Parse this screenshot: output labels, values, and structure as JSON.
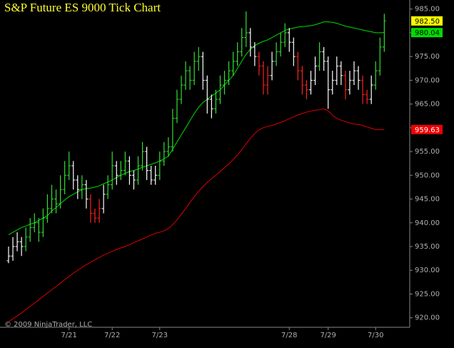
{
  "chart_data": {
    "type": "ohlc",
    "title": "S&P Future ES 9000 Tick Chart",
    "copyright": "© 2009 NinjaTrader, LLC",
    "categories": [
      null,
      null,
      null,
      null,
      null,
      null,
      null,
      null,
      null,
      null,
      null,
      null,
      null,
      null,
      "7/21",
      null,
      null,
      null,
      null,
      null,
      null,
      null,
      null,
      null,
      "7/22",
      null,
      null,
      null,
      null,
      null,
      null,
      null,
      null,
      null,
      null,
      "7/23",
      null,
      null,
      null,
      null,
      null,
      null,
      null,
      null,
      null,
      null,
      null,
      null,
      null,
      null,
      null,
      null,
      null,
      null,
      null,
      null,
      null,
      null,
      null,
      null,
      null,
      null,
      null,
      null,
      null,
      "7/28",
      null,
      null,
      null,
      null,
      null,
      null,
      null,
      null,
      "7/29",
      null,
      null,
      null,
      null,
      null,
      null,
      null,
      null,
      null,
      null,
      "7/30",
      null,
      null
    ],
    "open": [
      932,
      933,
      935,
      936,
      935,
      937,
      939,
      940,
      938,
      941,
      943,
      945,
      944,
      947,
      950,
      952,
      949,
      947,
      948,
      945,
      942,
      941,
      943,
      946,
      948,
      952,
      950,
      951,
      953,
      950,
      949,
      952,
      955,
      951,
      949,
      950,
      953,
      955,
      956,
      962,
      966,
      969,
      972,
      970,
      974,
      975,
      970,
      966,
      964,
      966,
      969,
      970,
      972,
      974,
      976,
      979,
      980,
      977,
      975,
      973,
      969,
      971,
      974,
      976,
      978,
      980,
      978,
      975,
      972,
      969,
      968,
      970,
      973,
      976,
      974,
      968,
      970,
      973,
      971,
      968,
      970,
      972,
      970,
      967,
      966,
      969,
      972,
      977
    ],
    "high": [
      935,
      937,
      938,
      937,
      939,
      941,
      942,
      941,
      943,
      946,
      948,
      947,
      950,
      953,
      955,
      953,
      950,
      950,
      949,
      946,
      943,
      945,
      948,
      950,
      955,
      953,
      953,
      955,
      954,
      951,
      954,
      957,
      956,
      952,
      952,
      955,
      957,
      958,
      964,
      968,
      971,
      974,
      973,
      976,
      977,
      976,
      971,
      967,
      968,
      971,
      972,
      974,
      976,
      978,
      981,
      984.5,
      981,
      978,
      976,
      974,
      973,
      976,
      978,
      980,
      982,
      981,
      979,
      976,
      973,
      970,
      972,
      975,
      978,
      977,
      975,
      972,
      975,
      974,
      972,
      972,
      974,
      973,
      971,
      968,
      971,
      974,
      979,
      984
    ],
    "low": [
      931.5,
      932,
      934,
      933,
      934,
      936,
      938,
      936,
      937,
      940,
      942,
      942,
      943,
      946,
      949,
      947,
      945,
      945,
      943,
      940,
      940,
      940,
      942,
      945,
      947,
      948,
      949,
      950,
      948,
      947,
      948,
      951,
      949,
      948,
      948,
      949,
      952,
      954,
      955,
      961,
      965,
      968,
      968,
      969,
      972,
      968,
      963,
      962,
      963,
      965,
      967,
      969,
      971,
      973,
      975,
      977,
      975,
      973,
      971,
      967,
      967,
      970,
      973,
      975,
      977,
      976,
      973,
      970,
      967,
      966,
      967,
      969,
      972,
      972,
      964,
      967,
      969,
      969,
      966,
      967,
      969,
      968,
      965,
      965,
      965,
      968,
      971,
      976
    ],
    "close": [
      933,
      935,
      936,
      935,
      937,
      939,
      940,
      938,
      941,
      943,
      945,
      944,
      947,
      950,
      952,
      949,
      947,
      948,
      945,
      942,
      941,
      943,
      946,
      948,
      952,
      950,
      951,
      953,
      950,
      949,
      952,
      955,
      951,
      949,
      950,
      953,
      955,
      956,
      962,
      966,
      969,
      972,
      970,
      974,
      975,
      970,
      966,
      964,
      966,
      969,
      970,
      972,
      974,
      976,
      979,
      980,
      977,
      975,
      973,
      969,
      971,
      974,
      976,
      978,
      980,
      978,
      975,
      972,
      969,
      968,
      970,
      973,
      976,
      974,
      968,
      970,
      973,
      971,
      968,
      970,
      972,
      970,
      967,
      966,
      969,
      972,
      977,
      982.5
    ],
    "bar_colors": [
      "#ffffff",
      "#ffffff",
      "#ffffff",
      "#ffffff",
      "#33dd33",
      "#33dd33",
      "#33dd33",
      "#33dd33",
      "#33dd33",
      "#33dd33",
      "#33dd33",
      "#33dd33",
      "#33dd33",
      "#33dd33",
      "#33dd33",
      "#ffffff",
      "#ffffff",
      "#33dd33",
      "#ffffff",
      "#ff2020",
      "#ff2020",
      "#ff2020",
      "#ffffff",
      "#33dd33",
      "#33dd33",
      "#ffffff",
      "#33dd33",
      "#33dd33",
      "#ffffff",
      "#ffffff",
      "#33dd33",
      "#33dd33",
      "#ffffff",
      "#ffffff",
      "#ffffff",
      "#33dd33",
      "#33dd33",
      "#33dd33",
      "#33dd33",
      "#33dd33",
      "#33dd33",
      "#33dd33",
      "#33dd33",
      "#33dd33",
      "#33dd33",
      "#ffffff",
      "#ffffff",
      "#ffffff",
      "#33dd33",
      "#33dd33",
      "#33dd33",
      "#33dd33",
      "#33dd33",
      "#33dd33",
      "#33dd33",
      "#33dd33",
      "#ffffff",
      "#ffffff",
      "#ff2020",
      "#ff2020",
      "#ff2020",
      "#ffffff",
      "#33dd33",
      "#33dd33",
      "#33dd33",
      "#ffffff",
      "#ffffff",
      "#ff2020",
      "#ff2020",
      "#ff2020",
      "#ffffff",
      "#ffffff",
      "#33dd33",
      "#ffffff",
      "#ffffff",
      "#ffffff",
      "#ffffff",
      "#ffffff",
      "#ff2020",
      "#ffffff",
      "#ffffff",
      "#ffffff",
      "#ff2020",
      "#ff2020",
      "#ffffff",
      "#33dd33",
      "#33dd33",
      "#33dd33"
    ],
    "lines": [
      {
        "color": "#00dd00",
        "values": [
          937.5,
          938,
          938.5,
          939,
          939.3,
          939.7,
          940,
          940.5,
          941,
          941.5,
          942.5,
          943.2,
          944,
          944.8,
          945.5,
          946,
          946.5,
          947,
          947.2,
          947.3,
          947.5,
          947.8,
          948.2,
          948.6,
          949,
          949.5,
          950,
          950.4,
          950.8,
          951,
          951.3,
          951.7,
          952,
          952.3,
          952.6,
          953,
          953.5,
          954,
          955.5,
          957,
          958.5,
          960,
          961.5,
          963,
          964.3,
          965.3,
          966,
          966.7,
          967.3,
          968,
          969,
          970,
          971,
          972.5,
          974,
          975.5,
          976.5,
          977.3,
          977.8,
          978.2,
          978.5,
          979,
          979.5,
          980,
          980.5,
          980.8,
          981,
          981.2,
          981.3,
          981.4,
          981.5,
          981.7,
          982,
          982.3,
          982.3,
          982.2,
          982,
          981.7,
          981.4,
          981.2,
          981,
          980.8,
          980.6,
          980.4,
          980.2,
          980,
          980,
          980.04
        ]
      },
      {
        "color": "#dd0000",
        "values": [
          919.2,
          919.8,
          920.4,
          921,
          921.7,
          922.4,
          923.1,
          923.8,
          924.5,
          925.2,
          925.9,
          926.6,
          927.3,
          928,
          928.7,
          929.4,
          930,
          930.6,
          931.2,
          931.7,
          932.2,
          932.7,
          933.2,
          933.6,
          934,
          934.4,
          934.7,
          935,
          935.4,
          935.8,
          936.2,
          936.6,
          937,
          937.4,
          937.8,
          938,
          938.3,
          938.8,
          939.6,
          940.6,
          941.8,
          943,
          944.3,
          945.5,
          946.6,
          947.6,
          948.5,
          949.3,
          950,
          950.8,
          951.6,
          952.4,
          953.3,
          954.3,
          955.4,
          956.6,
          957.8,
          958.8,
          959.6,
          960,
          960.3,
          960.5,
          960.8,
          961.1,
          961.5,
          961.9,
          962.3,
          962.7,
          963,
          963.3,
          963.5,
          963.7,
          963.8,
          964,
          963.6,
          962.6,
          962,
          961.6,
          961.3,
          961,
          960.8,
          960.7,
          960.5,
          960.2,
          959.9,
          959.6,
          959.6,
          959.63
        ]
      }
    ],
    "price_labels": [
      {
        "value": 982.5,
        "label": "982.50",
        "color": "#ffff00",
        "text_color": "#000000"
      },
      {
        "value": 980.04,
        "label": "980.04",
        "color": "#00dd00",
        "text_color": "#000000"
      },
      {
        "value": 959.63,
        "label": "959.63",
        "color": "#ee0000",
        "text_color": "#ffffff"
      }
    ],
    "ylim": [
      918,
      986
    ],
    "yticks": [
      {
        "value": 920,
        "label": "920.00"
      },
      {
        "value": 925,
        "label": "925.00"
      },
      {
        "value": 930,
        "label": "930.00"
      },
      {
        "value": 935,
        "label": "935.00"
      },
      {
        "value": 940,
        "label": "940.00"
      },
      {
        "value": 945,
        "label": "945.00"
      },
      {
        "value": 950,
        "label": "950.00"
      },
      {
        "value": 955,
        "label": "955.00"
      },
      {
        "value": 960,
        "label": "960.00"
      },
      {
        "value": 965,
        "label": "965.00"
      },
      {
        "value": 970,
        "label": "970.00"
      },
      {
        "value": 975,
        "label": "975.00"
      },
      {
        "value": 980,
        "label": "980.00"
      },
      {
        "value": 985,
        "label": "985.00"
      }
    ]
  }
}
